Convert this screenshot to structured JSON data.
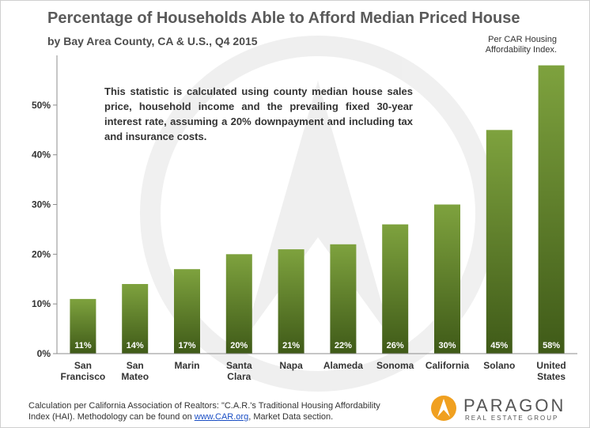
{
  "header": {
    "title": "Percentage of Households Able to Afford Median Priced House",
    "subtitle": "by Bay Area County, CA & U.S., Q4 2015",
    "source_note": "Per CAR Housing Affordability Index."
  },
  "note": "This statistic is calculated using county median house sales price, household income and the prevailing fixed 30-year  interest rate, assuming a 20% downpayment and including tax and insurance costs.",
  "footer": {
    "text_before_link": "Calculation per California Association of Realtors: \"C.A.R.'s Traditional Housing Affordability Index (HAI). Methodology can be found on ",
    "link_text": "www.CAR.org",
    "text_after_link": ", Market Data section."
  },
  "brand": {
    "name": "PARAGON",
    "tagline": "REAL ESTATE GROUP"
  },
  "colors": {
    "bar_top": "#7ea23e",
    "bar_bottom": "#3f5a18",
    "axis": "#8c8c8c",
    "text": "#333333",
    "logo_orange": "#f0a020"
  },
  "chart_data": {
    "type": "bar",
    "categories": [
      [
        "San",
        "Francisco"
      ],
      [
        "San",
        "Mateo"
      ],
      [
        "Marin"
      ],
      [
        "Santa",
        "Clara"
      ],
      [
        "Napa"
      ],
      [
        "Alameda"
      ],
      [
        "Sonoma"
      ],
      [
        "California"
      ],
      [
        "Solano"
      ],
      [
        "United",
        "States"
      ]
    ],
    "values": [
      11,
      14,
      17,
      20,
      21,
      22,
      26,
      30,
      45,
      58
    ],
    "data_labels": [
      "11%",
      "14%",
      "17%",
      "20%",
      "21%",
      "22%",
      "26%",
      "30%",
      "45%",
      "58%"
    ],
    "y_ticks": [
      0,
      10,
      20,
      30,
      40,
      50
    ],
    "y_tick_labels": [
      "0%",
      "10%",
      "20%",
      "30%",
      "40%",
      "50%"
    ],
    "ylim": [
      0,
      60
    ],
    "grid": false,
    "legend": "none"
  }
}
